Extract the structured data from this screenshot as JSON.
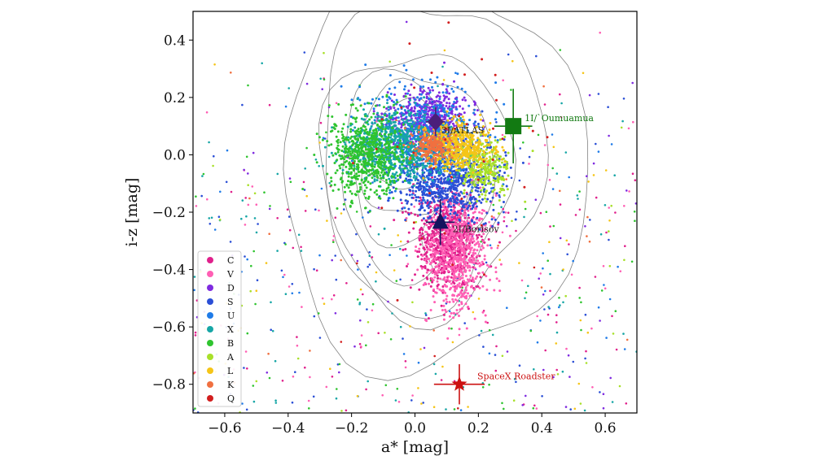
{
  "chart_data": {
    "type": "scatter",
    "xlabel": "a* [mag]",
    "ylabel": "i-z [mag]",
    "xlim": [
      -0.7,
      0.7
    ],
    "ylim": [
      -0.9,
      0.5
    ],
    "xticks": [
      -0.6,
      -0.4,
      -0.2,
      0.0,
      0.2,
      0.4,
      0.6
    ],
    "yticks": [
      -0.8,
      -0.6,
      -0.4,
      -0.2,
      0.0,
      0.2,
      0.4
    ],
    "xtick_labels": [
      "−0.6",
      "−0.4",
      "−0.2",
      "0.0",
      "0.2",
      "0.4",
      "0.6"
    ],
    "ytick_labels": [
      "−0.8",
      "−0.6",
      "−0.4",
      "−0.2",
      "0.0",
      "0.2",
      "0.4"
    ],
    "legend_position": "lower-left",
    "classes": [
      {
        "name": "C",
        "color": "#e0208c",
        "cx": 0.1,
        "cy": -0.3,
        "sx": 0.05,
        "sy": 0.08,
        "n": 700
      },
      {
        "name": "V",
        "color": "#ff5fb4",
        "cx": 0.13,
        "cy": -0.34,
        "sx": 0.05,
        "sy": 0.1,
        "n": 650
      },
      {
        "name": "D",
        "color": "#7f2be0",
        "cx": 0.04,
        "cy": 0.13,
        "sx": 0.06,
        "sy": 0.05,
        "n": 500
      },
      {
        "name": "S",
        "color": "#2b4fd6",
        "cx": 0.1,
        "cy": -0.08,
        "sx": 0.08,
        "sy": 0.07,
        "n": 750
      },
      {
        "name": "U",
        "color": "#1f7be8",
        "cx": 0.03,
        "cy": 0.06,
        "sx": 0.09,
        "sy": 0.09,
        "n": 500
      },
      {
        "name": "X",
        "color": "#17a6a6",
        "cx": -0.05,
        "cy": 0.03,
        "sx": 0.08,
        "sy": 0.06,
        "n": 750
      },
      {
        "name": "B",
        "color": "#2fc42f",
        "cx": -0.15,
        "cy": 0.0,
        "sx": 0.06,
        "sy": 0.07,
        "n": 650
      },
      {
        "name": "A",
        "color": "#a8e02a",
        "cx": 0.22,
        "cy": -0.05,
        "sx": 0.04,
        "sy": 0.05,
        "n": 300
      },
      {
        "name": "L",
        "color": "#f5c518",
        "cx": 0.14,
        "cy": 0.03,
        "sx": 0.05,
        "sy": 0.04,
        "n": 500
      },
      {
        "name": "K",
        "color": "#f07040",
        "cx": 0.05,
        "cy": 0.03,
        "sx": 0.03,
        "sy": 0.025,
        "n": 220
      },
      {
        "name": "Q",
        "color": "#d21e1e",
        "cx": 0.08,
        "cy": 0.0,
        "sx": 0.15,
        "sy": 0.2,
        "n": 40
      }
    ],
    "objects": [
      {
        "label": "3I/ATLAS",
        "x": 0.065,
        "y": 0.115,
        "xerr": 0.03,
        "yerr": 0.05,
        "marker": "diamond",
        "color": "#4b1f7a",
        "label_color": "#222222"
      },
      {
        "label": "1I/`Oumuamua",
        "x": 0.31,
        "y": 0.1,
        "xerr": 0.06,
        "yerr": 0.13,
        "marker": "square",
        "color": "#127a12",
        "label_color": "#127a12"
      },
      {
        "label": "2I/Borisov",
        "x": 0.08,
        "y": -0.235,
        "xerr": 0.045,
        "yerr": 0.08,
        "marker": "triangle",
        "color": "#14145e",
        "label_color": "#222222"
      },
      {
        "label": "SpaceX Roadster",
        "x": 0.14,
        "y": -0.8,
        "xerr": 0.08,
        "yerr": 0.07,
        "marker": "star",
        "color": "#cc1111",
        "label_color": "#cc1111"
      }
    ]
  }
}
